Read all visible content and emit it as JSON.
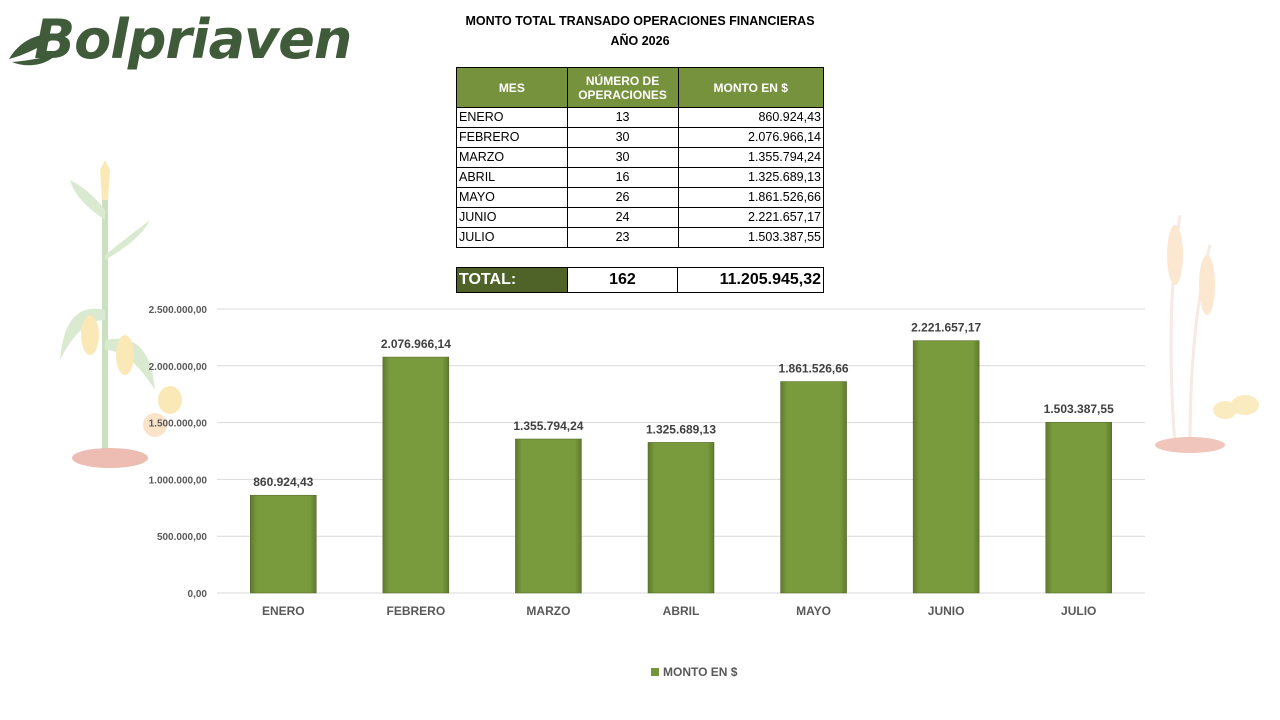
{
  "logo": {
    "brand": "Bolpriaven"
  },
  "header": {
    "title_line1": "MONTO TOTAL TRANSADO OPERACIONES FINANCIERAS",
    "title_line2": "AÑO 2026"
  },
  "table": {
    "headers": {
      "mes": "MES",
      "operaciones": "NÚMERO DE OPERACIONES",
      "monto": "MONTO EN $"
    },
    "rows": [
      {
        "mes": "ENERO",
        "ops": "13",
        "monto": "860.924,43"
      },
      {
        "mes": "FEBRERO",
        "ops": "30",
        "monto": "2.076.966,14"
      },
      {
        "mes": "MARZO",
        "ops": "30",
        "monto": "1.355.794,24"
      },
      {
        "mes": "ABRIL",
        "ops": "16",
        "monto": "1.325.689,13"
      },
      {
        "mes": "MAYO",
        "ops": "26",
        "monto": "1.861.526,66"
      },
      {
        "mes": "JUNIO",
        "ops": "24",
        "monto": "2.221.657,17"
      },
      {
        "mes": "JULIO",
        "ops": "23",
        "monto": "1.503.387,55"
      }
    ],
    "total": {
      "label": "TOTAL:",
      "ops": "162",
      "monto": "11.205.945,32"
    }
  },
  "colors": {
    "header_green": "#76923c",
    "total_green": "#4f6228",
    "bar_green": "#77933c"
  },
  "chart_data": {
    "type": "bar",
    "categories": [
      "ENERO",
      "FEBRERO",
      "MARZO",
      "ABRIL",
      "MAYO",
      "JUNIO",
      "JULIO"
    ],
    "series": [
      {
        "name": "MONTO EN $",
        "values": [
          860924.43,
          2076966.14,
          1355794.24,
          1325689.13,
          1861526.66,
          2221657.17,
          1503387.55
        ],
        "labels": [
          "860.924,43",
          "2.076.966,14",
          "1.355.794,24",
          "1.325.689,13",
          "1.861.526,66",
          "2.221.657,17",
          "1.503.387,55"
        ]
      }
    ],
    "y_ticks": [
      0,
      500000,
      1000000,
      1500000,
      2000000,
      2500000
    ],
    "y_tick_labels": [
      "0,00",
      "500.000,00",
      "1.000.000,00",
      "1.500.000,00",
      "2.000.000,00",
      "2.500.000,00"
    ],
    "ylim": [
      0,
      2500000
    ],
    "grid": true,
    "legend": "bottom"
  }
}
